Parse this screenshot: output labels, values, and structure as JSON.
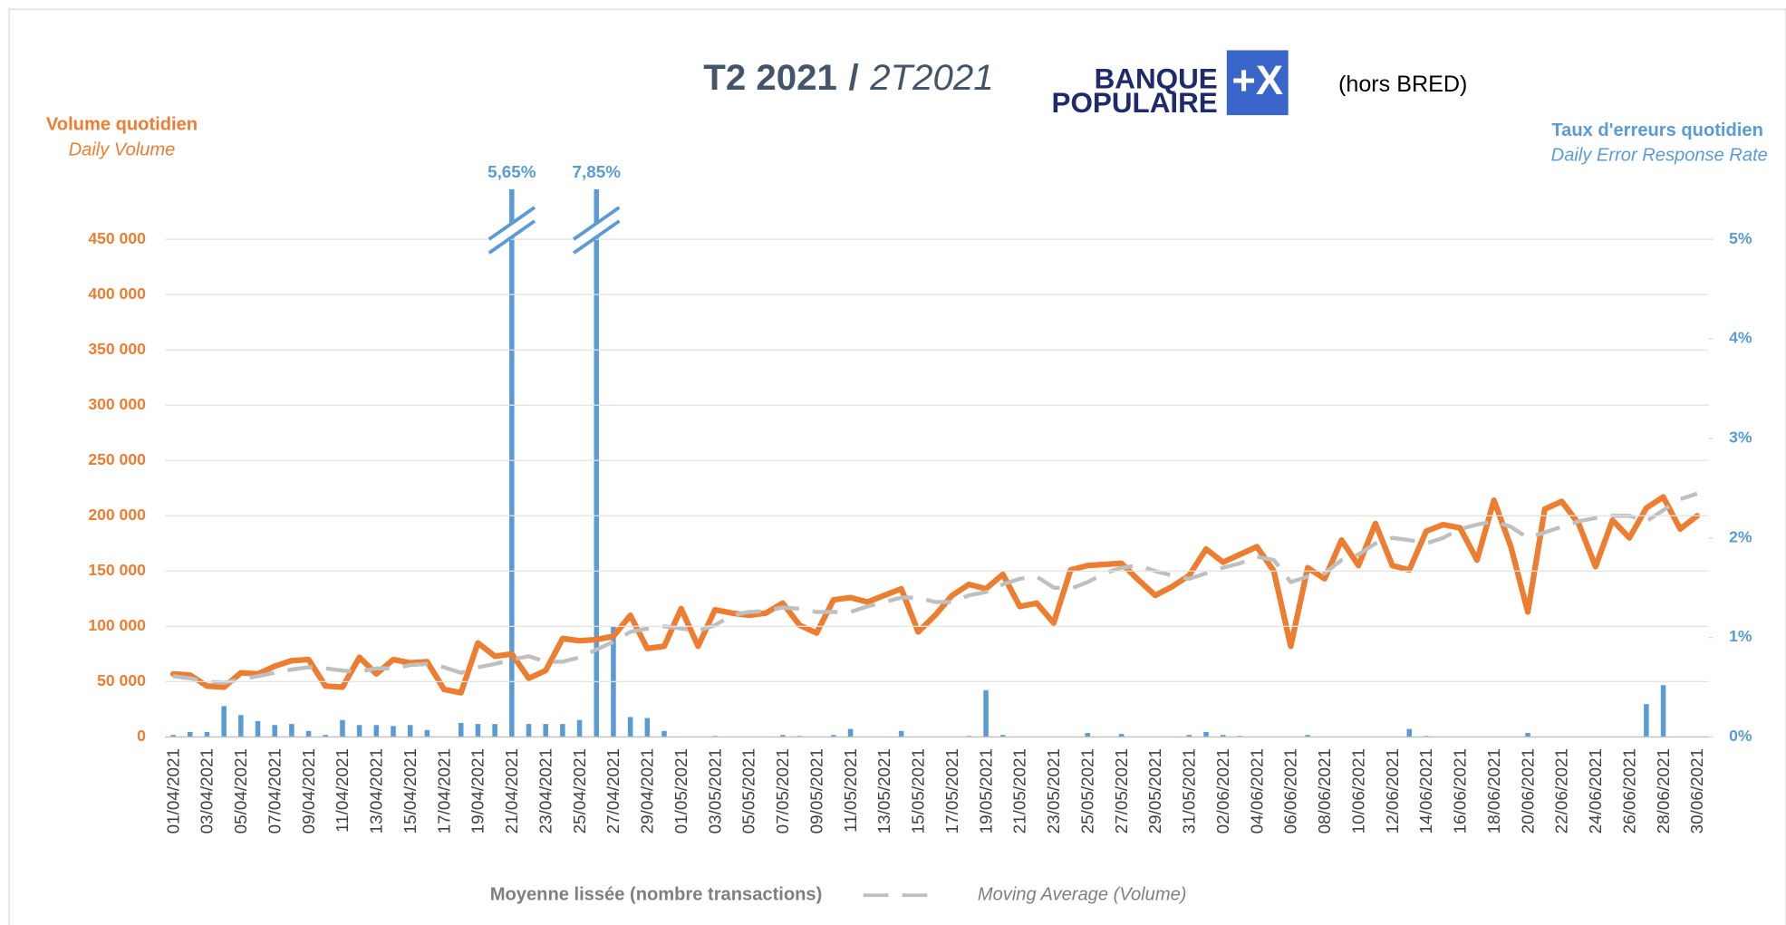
{
  "chart_data": {
    "type": "line_bar",
    "title": "T2 2021",
    "title_separator": "/",
    "title_alt": "2T2021",
    "logo": {
      "line1": "BANQUE",
      "line2": "POPULAIRE",
      "mark": "+X"
    },
    "note": "(hors BRED)",
    "y_label": "Volume quotidien",
    "y_label_en": "Daily Volume",
    "y2_label": "Taux d'erreurs quotidien",
    "y2_label_en": "Daily Error Response Rate",
    "categories": [
      "01/04/2021",
      null,
      "03/04/2021",
      null,
      "05/04/2021",
      null,
      "07/04/2021",
      null,
      "09/04/2021",
      null,
      "11/04/2021",
      null,
      "13/04/2021",
      null,
      "15/04/2021",
      null,
      "17/04/2021",
      null,
      "19/04/2021",
      null,
      "21/04/2021",
      null,
      "23/04/2021",
      null,
      "25/04/2021",
      null,
      "27/04/2021",
      null,
      "29/04/2021",
      null,
      "01/05/2021",
      null,
      "03/05/2021",
      null,
      "05/05/2021",
      null,
      "07/05/2021",
      null,
      "09/05/2021",
      null,
      "11/05/2021",
      null,
      "13/05/2021",
      null,
      "15/05/2021",
      null,
      "17/05/2021",
      null,
      "19/05/2021",
      null,
      "21/05/2021",
      null,
      "23/05/2021",
      null,
      "25/05/2021",
      null,
      "27/05/2021",
      null,
      "29/05/2021",
      null,
      "31/05/2021",
      null,
      "02/06/2021",
      null,
      "04/06/2021",
      null,
      "06/06/2021",
      null,
      "08/06/2021",
      null,
      "10/06/2021",
      null,
      "12/06/2021",
      null,
      "14/06/2021",
      null,
      "16/06/2021",
      null,
      "18/06/2021",
      null,
      "20/06/2021",
      null,
      "22/06/2021",
      null,
      "24/06/2021",
      null,
      "26/06/2021",
      null,
      "28/06/2021",
      null,
      "30/06/2021"
    ],
    "series": [
      {
        "type": "bar",
        "axis": "y2",
        "color": "#5b9bd5",
        "values": [
          0.02,
          0.05,
          0.05,
          0.31,
          0.22,
          0.16,
          0.12,
          0.13,
          0.06,
          0.02,
          0.17,
          0.12,
          0.12,
          0.11,
          0.12,
          0.07,
          0,
          0.14,
          0.13,
          0.13,
          5.65,
          0.13,
          0.13,
          0.13,
          0.17,
          7.85,
          1.11,
          0.2,
          0.19,
          0.06,
          0,
          0,
          0.01,
          0,
          0,
          0,
          0.02,
          0.01,
          0,
          0.02,
          0.08,
          0,
          0,
          0.06,
          0,
          0,
          0,
          0.01,
          0.47,
          0.02,
          0,
          0,
          0,
          0,
          0.04,
          0,
          0.03,
          0,
          0,
          0,
          0.02,
          0.05,
          0.02,
          0.01,
          0,
          0,
          0,
          0.02,
          0,
          0,
          0,
          0,
          0,
          0.08,
          0.01,
          0,
          0,
          0,
          0,
          0,
          0.04,
          0,
          0,
          0,
          0,
          0,
          0,
          0.33,
          0.52,
          0,
          0
        ],
        "value_labels": [
          null,
          null,
          null,
          null,
          null,
          null,
          null,
          null,
          null,
          null,
          null,
          null,
          null,
          null,
          null,
          null,
          null,
          null,
          null,
          null,
          "5,65%",
          null,
          null,
          null,
          null,
          "7,85%",
          null,
          null,
          null,
          null,
          null,
          null,
          null,
          null,
          null,
          null,
          null,
          null,
          null,
          null,
          null,
          null,
          null,
          null,
          null,
          null,
          null,
          null,
          null,
          null,
          null,
          null,
          null,
          null,
          null,
          null,
          null,
          null,
          null,
          null,
          null,
          null,
          null,
          null,
          null,
          null,
          null,
          null,
          null,
          null,
          null,
          null,
          null,
          null,
          null,
          null,
          null,
          null,
          null,
          null,
          null,
          null,
          null,
          null,
          null,
          null,
          null,
          null,
          null,
          null,
          null
        ]
      },
      {
        "type": "line",
        "color": "#ed7d31",
        "values": [
          57000,
          56000,
          46000,
          45000,
          58000,
          57000,
          64000,
          69000,
          70000,
          46000,
          45000,
          72000,
          57000,
          70000,
          67000,
          68000,
          43000,
          40000,
          85000,
          73000,
          75000,
          53000,
          60000,
          89000,
          87000,
          88000,
          91000,
          110000,
          80000,
          82000,
          116000,
          82000,
          115000,
          112000,
          110000,
          112000,
          121000,
          101000,
          94000,
          124000,
          126000,
          122000,
          128000,
          134000,
          95000,
          110000,
          128000,
          138000,
          134000,
          147000,
          118000,
          121000,
          103000,
          151000,
          155000,
          156000,
          157000,
          142000,
          128000,
          136000,
          146000,
          170000,
          158000,
          165000,
          172000,
          150000,
          82000,
          153000,
          143000,
          178000,
          155000,
          193000,
          155000,
          151000,
          186000,
          192000,
          189000,
          160000,
          214000,
          172000,
          113000,
          206000,
          213000,
          193000,
          154000,
          196000,
          180000,
          207000,
          217000,
          188000,
          200000
        ]
      },
      {
        "type": "dashed",
        "name": "Moyenne lissée (nombre transactions)",
        "name_en": "Moving  Average (Volume)",
        "color": "#bfbfbf",
        "values": [
          55000,
          53000,
          50000,
          49000,
          52000,
          55000,
          58000,
          61000,
          63000,
          62000,
          60000,
          59000,
          62000,
          62000,
          65000,
          66000,
          63000,
          58000,
          63000,
          66000,
          70000,
          73000,
          68000,
          68000,
          72000,
          79000,
          86000,
          95000,
          98000,
          100000,
          98000,
          96000,
          101000,
          110000,
          113000,
          114000,
          117000,
          116000,
          113000,
          113000,
          113000,
          118000,
          122000,
          126000,
          126000,
          122000,
          122000,
          128000,
          131000,
          138000,
          143000,
          145000,
          135000,
          134000,
          140000,
          148000,
          153000,
          155000,
          150000,
          146000,
          143000,
          148000,
          153000,
          157000,
          163000,
          160000,
          140000,
          145000,
          148000,
          160000,
          165000,
          175000,
          180000,
          178000,
          175000,
          180000,
          188000,
          192000,
          195000,
          190000,
          180000,
          185000,
          190000,
          195000,
          198000,
          200000,
          200000,
          195000,
          205000,
          215000,
          220000
        ]
      }
    ],
    "ylim": [
      0,
      450000
    ],
    "yticks": [
      0,
      {
        "value": 50000,
        "label": "50 000"
      },
      {
        "value": 100000,
        "label": "100 000"
      },
      {
        "value": 150000,
        "label": "150 000"
      },
      {
        "value": 200000,
        "label": "200 000"
      },
      {
        "value": 250000,
        "label": "250 000"
      },
      {
        "value": 300000,
        "label": "300 000"
      },
      {
        "value": 350000,
        "label": "350 000"
      },
      {
        "value": 400000,
        "label": "400 000"
      },
      {
        "value": 450000,
        "label": "450 000"
      }
    ],
    "y2lim": [
      0,
      5
    ],
    "y2ticks": [
      {
        "value": 0,
        "label": "0%"
      },
      {
        "value": 1,
        "label": "1%"
      },
      {
        "value": 2,
        "label": "2%"
      },
      {
        "value": 3,
        "label": "3%"
      },
      {
        "value": 4,
        "label": "4%"
      },
      {
        "value": 5,
        "label": "5%"
      }
    ],
    "grid": true
  }
}
